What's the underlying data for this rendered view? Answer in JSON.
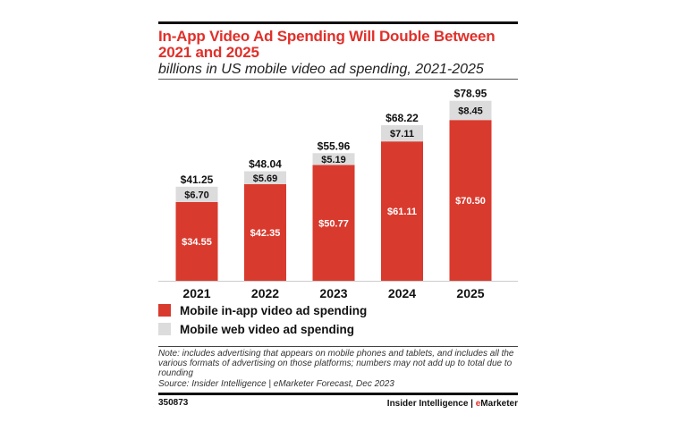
{
  "chart_data": {
    "type": "bar",
    "stacked": true,
    "title": "In-App Video Ad Spending Will Double Between 2021 and 2025",
    "subtitle": "billions in US mobile video ad spending, 2021-2025",
    "categories": [
      "2021",
      "2022",
      "2023",
      "2024",
      "2025"
    ],
    "series": [
      {
        "name": "Mobile in-app video ad spending",
        "color": "#d93a2e",
        "values": [
          34.55,
          42.35,
          50.77,
          61.11,
          70.5
        ],
        "labels": [
          "$34.55",
          "$42.35",
          "$50.77",
          "$61.11",
          "$70.50"
        ]
      },
      {
        "name": "Mobile web video ad spending",
        "color": "#dcdcdc",
        "values": [
          6.7,
          5.69,
          5.19,
          7.11,
          8.45
        ],
        "labels": [
          "$6.70",
          "$5.69",
          "$5.19",
          "$7.11",
          "$8.45"
        ]
      }
    ],
    "totals": [
      41.25,
      48.04,
      55.96,
      68.22,
      78.95
    ],
    "total_labels": [
      "$41.25",
      "$48.04",
      "$55.96",
      "$68.22",
      "$78.95"
    ],
    "xlabel": "",
    "ylabel": "",
    "ylim": [
      0,
      80
    ],
    "grid": false,
    "legend_position": "bottom-left"
  },
  "note": "Note: includes advertising that appears on mobile phones and tablets, and includes all the various formats of advertising on those platforms; numbers may not add up to total due to rounding",
  "source": "Source: Insider Intelligence | eMarketer Forecast, Dec 2023",
  "footer": {
    "chart_id": "350873",
    "brand_prefix": "Insider Intelligence | ",
    "brand_e": "e",
    "brand_suffix": "Marketer"
  }
}
